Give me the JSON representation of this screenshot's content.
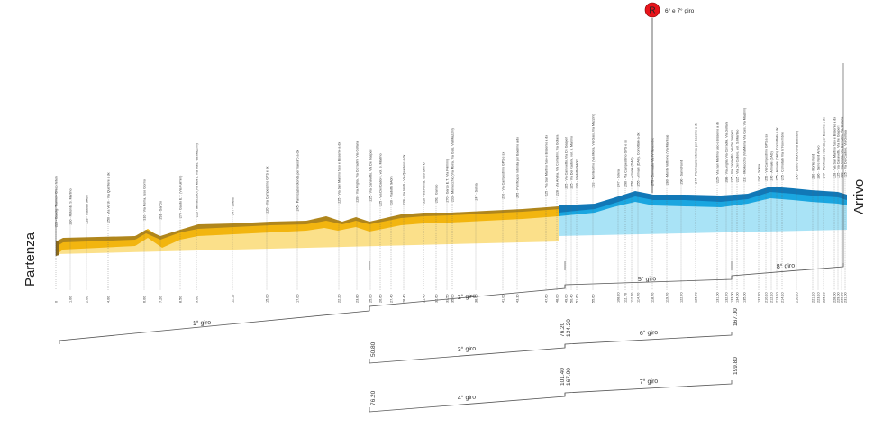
{
  "start_label": "Partenza",
  "finish_label": "Arrivo",
  "marker": {
    "letter": "R",
    "text": "6° e 7° giro",
    "color": "#e8141b"
  },
  "colors": {
    "yellow_fill": "#fbe08a",
    "yellow_band": "#f2b50f",
    "brown": "#b0861c",
    "blue_fill": "#a9e3f6",
    "blue_band": "#1aa6e0",
    "blue_dark": "#1178b7"
  },
  "waypoints": [
    {
      "km": "0",
      "label": "223 - Baselg. Tournei - Croso Nitelo"
    },
    {
      "km": "1.00",
      "label": "230 - Rotonda S. Martino"
    },
    {
      "km": "2.00",
      "label": "228 - Viadotto 9A0m"
    },
    {
      "km": "4.00",
      "label": "250 - Via Verdi - Via Quartiere a dx"
    },
    {
      "km": "6.00",
      "label": "310 - Via Roma, fuso Giorno"
    },
    {
      "km": "7.20",
      "label": "291 - Gancio"
    },
    {
      "km": "8.50",
      "label": "270 - Gardo E.T. (Via Fulmini)"
    },
    {
      "km": "9.00",
      "label": "233 - Montecchio (Via Moira, Via Gais, Via Mazzini)"
    },
    {
      "km": "11.10",
      "label": "247 - Soleia"
    },
    {
      "km": "15.00",
      "label": "220 - Via Campestrino GPS e sx"
    },
    {
      "km": "17.00",
      "label": "245 - Panificazio rotonda per Baesino a dx"
    },
    {
      "km": "22.20",
      "label": "225 - Via San Martino fuso e Bissenio a dx"
    },
    {
      "km": "23.80",
      "label": "228 - Via Anglia, Via Corradini, Via Gollara"
    },
    {
      "km": "25.00",
      "label": "225 - Via Canavetto, Via De Gasperi"
    },
    {
      "km": "26.60",
      "label": "225 - Via Dei Cadore, vol. S. Martino"
    },
    {
      "km": "27.40",
      "label": "230 - Viadotto 9A0m"
    },
    {
      "km": "28.40",
      "label": "228 - Via Verdi - Via Quartiere a dx"
    },
    {
      "km": "31.40",
      "label": "310 - Via Roma, fuso Giorno"
    },
    {
      "km": "32.60",
      "label": "291 - Gancio"
    },
    {
      "km": "33.50",
      "label": "270 - Gardo E.T. (Via Fulmini)"
    },
    {
      "km": "35.00",
      "label": "233 - Montecchio (Via Moira, Via Gais, Via Mazzini)"
    },
    {
      "km": "38.00",
      "label": "247 - Soleia"
    },
    {
      "km": "41.00",
      "label": "290 - Via Campestrino GPS e sx"
    },
    {
      "km": "43.30",
      "label": "245 - Panificazio rotonda per Baesino a dx"
    },
    {
      "km": "47.60",
      "label": "225 - Via San Martino fuso e Bissenio a dx"
    },
    {
      "km": "48.00",
      "label": "228 - Via Anglia, Via Corradini, Via Gollara"
    },
    {
      "km": "49.00",
      "label": "225 - Via Canavetto, Via De Gasperi"
    },
    {
      "km": "50.40",
      "label": "225 - Via Dei Cadore, vol. S. Martino"
    },
    {
      "km": "51.60",
      "label": "230 - Viadotto 9A0m"
    },
    {
      "km": "55.60",
      "label": "233 - Montecchio (Via Moira, Via Gais, Via Mazzini)"
    },
    {
      "km": "108.20",
      "label": "247 - Soleia"
    },
    {
      "km": "111.70",
      "label": "290 - Via Campestrino GPS e sx"
    },
    {
      "km": "112.70",
      "label": "250 - Arrivale (DAG)"
    },
    {
      "km": "114.70",
      "label": "255 - Arrivale (DAG), Cornottato a dx"
    },
    {
      "km": "118.70",
      "label": "275 - Cornotato Via IV Novembre"
    },
    {
      "km": "119.70",
      "label": "280 - Monte Vettrone (Via Marilisa)"
    },
    {
      "km": "122.70",
      "label": "290 - Sarre Nord"
    },
    {
      "km": "126.70",
      "label": "247 - Panificazio rotonda per Baesino a dx"
    },
    {
      "km": "131.00",
      "label": "225 - Via San Martino fuso e Bissenio a dx"
    },
    {
      "km": "132.70",
      "label": "288 - Via Anglia, Via Corradini, Via Gollara"
    },
    {
      "km": "133.00",
      "label": "225 - Via Canavetto, Via De Gasperi"
    },
    {
      "km": "134.00",
      "label": "225 - Via Dei Cadore, vol. S. Martino"
    },
    {
      "km": "135.00",
      "label": "233 - Montecchio (Via Moira, Via Gais, Via Mazzini)"
    },
    {
      "km": "137.20",
      "label": "247 - Soleia"
    },
    {
      "km": "210.10",
      "label": "250 - Via Campestrino GPS a sx"
    },
    {
      "km": "212.10",
      "label": "240 - Arrivale (DAG)"
    },
    {
      "km": "213.10",
      "label": "255 - Arrivale (DAG), Cornottato a dx"
    },
    {
      "km": "214.10",
      "label": "275 - Cornotato Via IV Novembre"
    },
    {
      "km": "216.10",
      "label": "290 - Dietro Vittorio (Via Battiston)"
    },
    {
      "km": "221.10",
      "label": "280 - Monte Nord"
    },
    {
      "km": "223.10",
      "label": "286 - Sarre Nord Arrivo"
    },
    {
      "km": "226.10",
      "label": "247 - Panificazio rotonda per Baesino a dx"
    },
    {
      "km": "228.00",
      "label": "228 - Via San Martino fuso e Bissenio a dx"
    },
    {
      "km": "229.00",
      "label": "225 - Via Canavetto, Via De Gasperi"
    },
    {
      "km": "230.00",
      "label": "288 - Via Anglia, Via Corradini, Via Gollara"
    },
    {
      "km": "231.00",
      "label": "225 - Via Dei Cadore, Via Gollara"
    }
  ],
  "laps": [
    {
      "label": "1° giro",
      "km_start": "",
      "km_end": ""
    },
    {
      "label": "2° giro",
      "km_start": "",
      "km_end": ""
    },
    {
      "label": "3° giro",
      "km_start": "50.80",
      "km_end": "76.20"
    },
    {
      "label": "4° giro",
      "km_start": "76.20",
      "km_end": "101.40"
    },
    {
      "label": "5° giro",
      "km_start": "",
      "km_end": ""
    },
    {
      "label": "6° giro",
      "km_start": "134.20",
      "km_end": "167.00"
    },
    {
      "label": "7° giro",
      "km_start": "167.00",
      "km_end": "199.80"
    },
    {
      "label": "8° giro",
      "km_start": "",
      "km_end": ""
    }
  ]
}
